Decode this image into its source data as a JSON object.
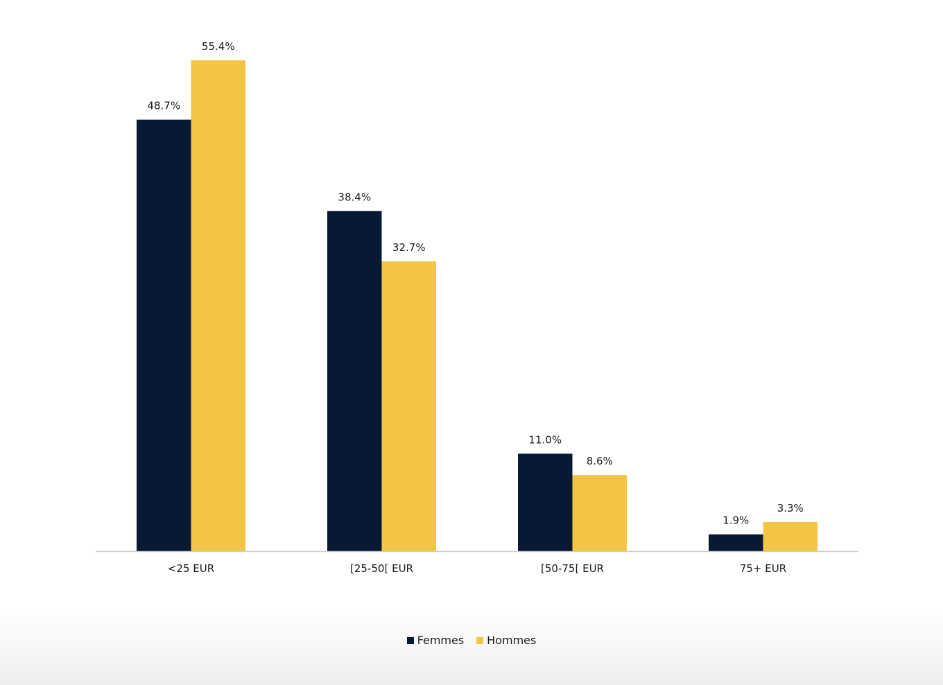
{
  "colors": {
    "Femmes": "#081a33",
    "Hommes": "#f3c545",
    "baseline": "#cccccc"
  },
  "chart_data": {
    "type": "bar",
    "categories": [
      "<25 EUR",
      "[25-50[ EUR",
      "[50-75[ EUR",
      "75+ EUR"
    ],
    "series": [
      {
        "name": "Femmes",
        "values": [
          48.7,
          38.4,
          11.0,
          1.9
        ],
        "labels": [
          "48.7%",
          "38.4%",
          "11.0%",
          "1.9%"
        ]
      },
      {
        "name": "Hommes",
        "values": [
          55.4,
          32.7,
          8.6,
          3.3
        ],
        "labels": [
          "55.4%",
          "32.7%",
          "8.6%",
          "3.3%"
        ]
      }
    ],
    "title": "",
    "xlabel": "",
    "ylabel": "",
    "ylim": [
      0,
      60
    ],
    "grid": false,
    "legend_position": "bottom-center"
  },
  "legend": {
    "items": [
      {
        "label": "Femmes",
        "color": "#081a33"
      },
      {
        "label": "Hommes",
        "color": "#f3c545"
      }
    ]
  }
}
